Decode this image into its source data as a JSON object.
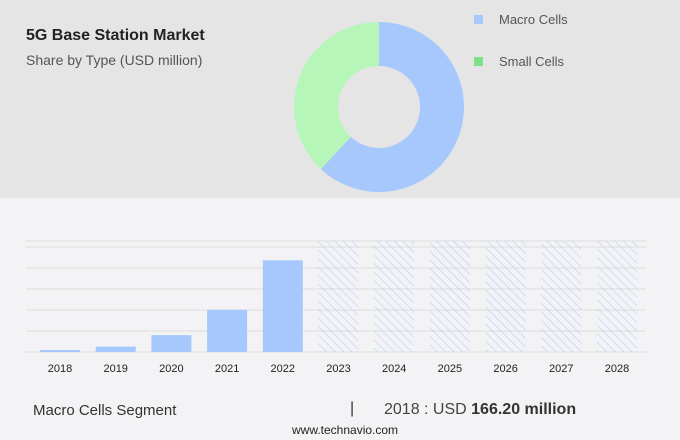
{
  "title": "5G Base Station Market",
  "subtitle": "Share by Type (USD million)",
  "colors": {
    "macro": "#a7c8fd",
    "small": "#b6f7b9",
    "small_legend": "#7ee08a",
    "hatch": "#a7c8fd"
  },
  "chart_data": [
    {
      "type": "pie",
      "donut": true,
      "legend": [
        "Macro Cells",
        "Small Cells"
      ],
      "legend_placement": "right",
      "values": [
        62,
        38
      ]
    },
    {
      "type": "bar",
      "categories": [
        "2018",
        "2019",
        "2020",
        "2021",
        "2022",
        "2023",
        "2024",
        "2025",
        "2026",
        "2027",
        "2028"
      ],
      "values": [
        166.2,
        450,
        1400,
        3500,
        7600,
        null,
        null,
        null,
        null,
        null,
        null
      ],
      "forecast_hatched": [
        "2023",
        "2024",
        "2025",
        "2026",
        "2027",
        "2028"
      ],
      "grid": true,
      "ylim": [
        0,
        9200
      ]
    }
  ],
  "footer": {
    "segment": "Macro Cells Segment",
    "separator": "|",
    "year_prefix": "2018 : USD ",
    "value": "166.20 million",
    "source": "www.technavio.com"
  }
}
